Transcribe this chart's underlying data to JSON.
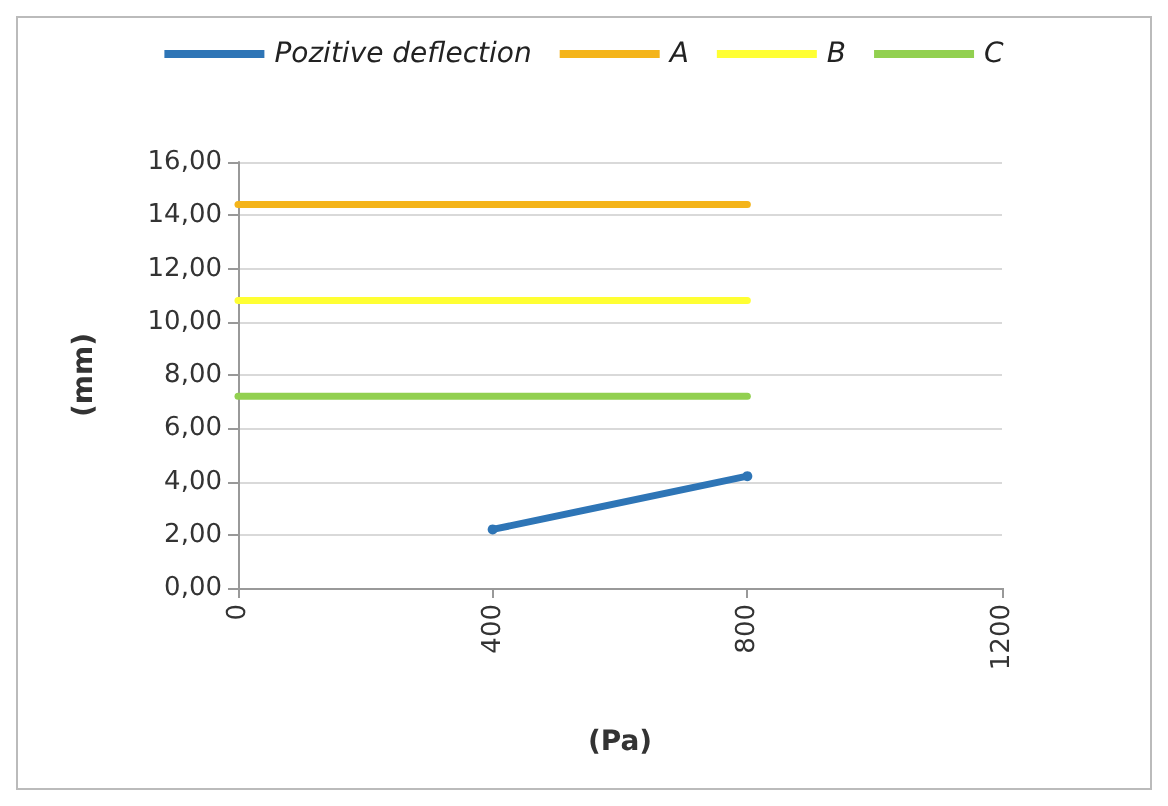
{
  "chart_data": {
    "type": "line",
    "xlabel": "(Pa)",
    "ylabel": "(mm)",
    "xlim": [
      0,
      1200
    ],
    "xticks": [
      0,
      400,
      800,
      1200
    ],
    "ylim": [
      0,
      16
    ],
    "yticks": [
      {
        "value": 0,
        "label": "0,00"
      },
      {
        "value": 2,
        "label": "2,00"
      },
      {
        "value": 4,
        "label": "4,00"
      },
      {
        "value": 6,
        "label": "6,00"
      },
      {
        "value": 8,
        "label": "8,00"
      },
      {
        "value": 10,
        "label": "10,00"
      },
      {
        "value": 12,
        "label": "12,00"
      },
      {
        "value": 14,
        "label": "14,00"
      },
      {
        "value": 16,
        "label": "16,00"
      }
    ],
    "grid": "y",
    "legend": "top",
    "series": [
      {
        "name": "Pozitive deflection",
        "color": "#2e75b6",
        "x": [
          400,
          800
        ],
        "values": [
          2.2,
          4.2
        ],
        "marker": "circle"
      },
      {
        "name": "A",
        "color": "#f4b41a",
        "x": [
          0,
          800
        ],
        "values": [
          14.4,
          14.4
        ],
        "marker": "none"
      },
      {
        "name": "B",
        "color": "#ffff33",
        "x": [
          0,
          800
        ],
        "values": [
          10.8,
          10.8
        ],
        "marker": "none"
      },
      {
        "name": "C",
        "color": "#92d050",
        "x": [
          0,
          800
        ],
        "values": [
          7.2,
          7.2
        ],
        "marker": "none"
      }
    ]
  }
}
